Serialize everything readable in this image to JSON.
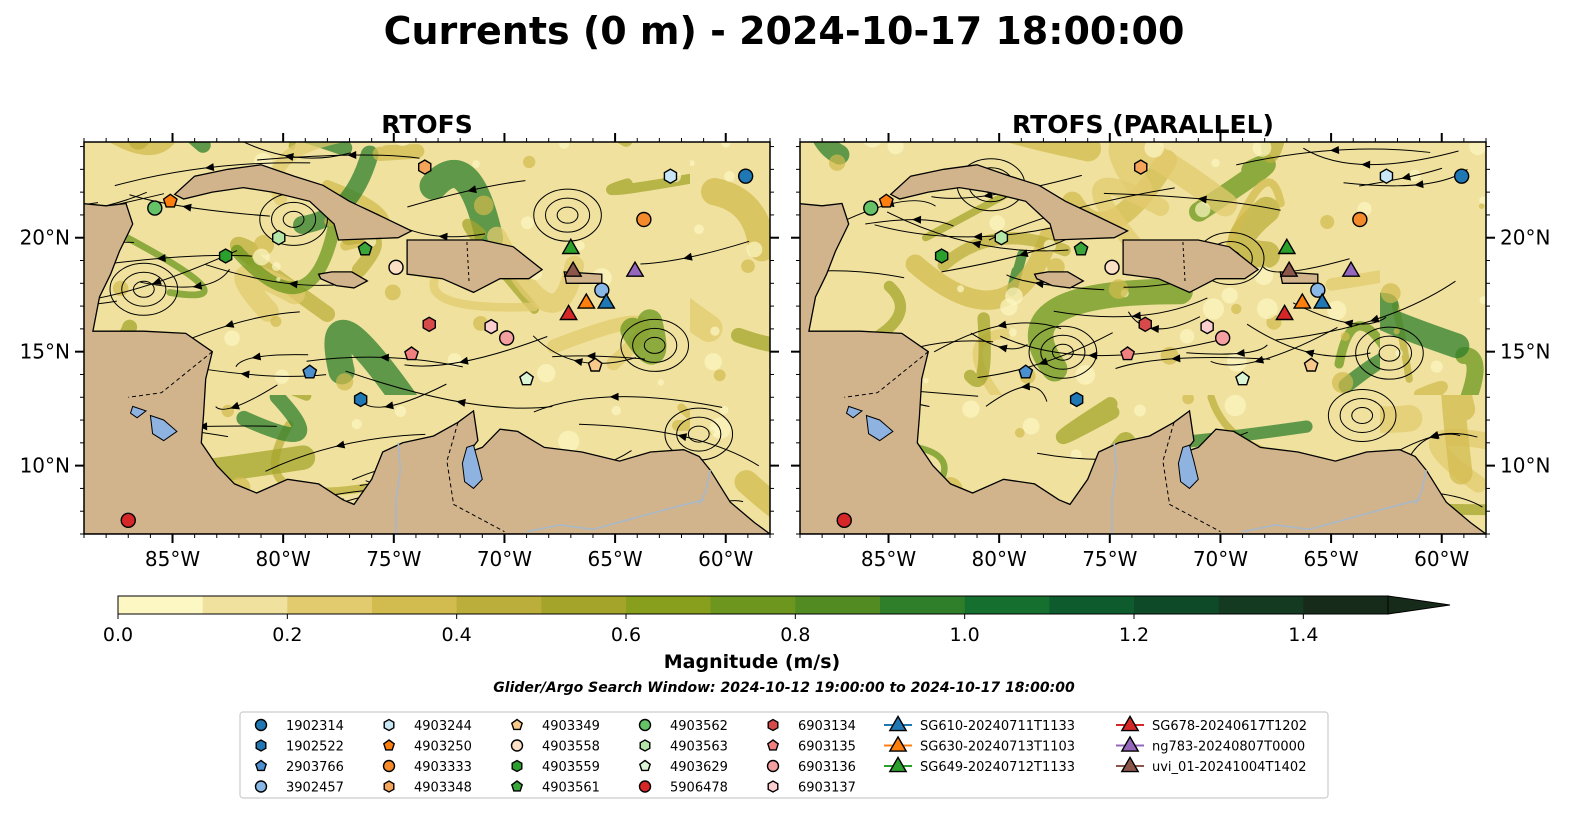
{
  "figure": {
    "title": "Currents (0 m) - 2024-10-17 18:00:00"
  },
  "panels": [
    {
      "id": "left",
      "title": "RTOFS",
      "y_labels_side": "left"
    },
    {
      "id": "right",
      "title": "RTOFS (PARALLEL)",
      "y_labels_side": "right"
    }
  ],
  "axes": {
    "lon_range": [
      -89,
      -58
    ],
    "lat_range": [
      7,
      24.2
    ],
    "x_ticks": [
      {
        "value": -85,
        "label": "85°W"
      },
      {
        "value": -80,
        "label": "80°W"
      },
      {
        "value": -75,
        "label": "75°W"
      },
      {
        "value": -70,
        "label": "70°W"
      },
      {
        "value": -65,
        "label": "65°W"
      },
      {
        "value": -60,
        "label": "60°W"
      }
    ],
    "y_ticks": [
      {
        "value": 10,
        "label": "10°N"
      },
      {
        "value": 15,
        "label": "15°N"
      },
      {
        "value": 20,
        "label": "20°N"
      }
    ]
  },
  "colorbar": {
    "label": "Magnitude (m/s)",
    "range": [
      0,
      1.5
    ],
    "extend": "max",
    "ticks": [
      {
        "value": 0.0,
        "label": "0.0"
      },
      {
        "value": 0.2,
        "label": "0.2"
      },
      {
        "value": 0.4,
        "label": "0.4"
      },
      {
        "value": 0.6,
        "label": "0.6"
      },
      {
        "value": 0.8,
        "label": "0.8"
      },
      {
        "value": 1.0,
        "label": "1.0"
      },
      {
        "value": 1.2,
        "label": "1.2"
      },
      {
        "value": 1.4,
        "label": "1.4"
      }
    ],
    "colors": [
      "#fdf7c3",
      "#f0e29e",
      "#e2cb6e",
      "#d2bb4f",
      "#bcae3a",
      "#a4a42a",
      "#879f1c",
      "#6c961d",
      "#518b22",
      "#2f7f2a",
      "#15702f",
      "#0e5c2d",
      "#0e4a28",
      "#153a22",
      "#172b1a"
    ]
  },
  "search_window": "Glider/Argo Search Window: 2024-10-12 19:00:00 to 2024-10-17 18:00:00",
  "colors": {
    "land": "#d2b48c",
    "lake": "#8fb3e0",
    "river": "#a8b8c8",
    "ocean_low": "#fdf7c3"
  },
  "platforms": [
    {
      "id": "1902314",
      "marker": "circle",
      "color": "#1f77b4",
      "lon": -59.1,
      "lat": 22.7,
      "lon2": -59.1,
      "lat2": 22.7
    },
    {
      "id": "1902522",
      "marker": "hexagon",
      "color": "#1f77b4",
      "lon": -76.5,
      "lat": 12.9,
      "lon2": -76.5,
      "lat2": 12.9
    },
    {
      "id": "2903766",
      "marker": "pentagon",
      "color": "#4a90d0",
      "lon": -78.8,
      "lat": 14.1,
      "lon2": -78.8,
      "lat2": 14.1
    },
    {
      "id": "3902457",
      "marker": "circle",
      "color": "#8ab8e6",
      "lon": -65.6,
      "lat": 17.7,
      "lon2": -65.6,
      "lat2": 17.7
    },
    {
      "id": "4903244",
      "marker": "hexagon",
      "color": "#c8e6f5",
      "lon": -62.5,
      "lat": 22.7,
      "lon2": -62.5,
      "lat2": 22.7
    },
    {
      "id": "4903250",
      "marker": "pentagon",
      "color": "#ff7f0e",
      "lon": -85.1,
      "lat": 21.6,
      "lon2": -85.1,
      "lat2": 21.6
    },
    {
      "id": "4903333",
      "marker": "circle",
      "color": "#f58a2a",
      "lon": -63.7,
      "lat": 20.8,
      "lon2": -63.7,
      "lat2": 20.8
    },
    {
      "id": "4903348",
      "marker": "hexagon",
      "color": "#f5a55a",
      "lon": -73.6,
      "lat": 23.1,
      "lon2": -73.6,
      "lat2": 23.1
    },
    {
      "id": "4903349",
      "marker": "pentagon",
      "color": "#f8c98a",
      "lon": -65.9,
      "lat": 14.4,
      "lon2": -65.9,
      "lat2": 14.4
    },
    {
      "id": "4903558",
      "marker": "circle",
      "color": "#fbe0c6",
      "lon": -74.9,
      "lat": 18.7,
      "lon2": -74.9,
      "lat2": 18.7
    },
    {
      "id": "4903559",
      "marker": "hexagon",
      "color": "#2ca02c",
      "lon": -82.6,
      "lat": 19.2,
      "lon2": -82.6,
      "lat2": 19.2
    },
    {
      "id": "4903561",
      "marker": "pentagon",
      "color": "#3aa63a",
      "lon": -76.3,
      "lat": 19.5,
      "lon2": -76.3,
      "lat2": 19.5
    },
    {
      "id": "4903562",
      "marker": "circle",
      "color": "#66c266",
      "lon": -85.8,
      "lat": 21.3,
      "lon2": -85.8,
      "lat2": 21.3
    },
    {
      "id": "4903563",
      "marker": "hexagon",
      "color": "#b4e6a8",
      "lon": -80.2,
      "lat": 20.0,
      "lon2": -79.9,
      "lat2": 20.0
    },
    {
      "id": "4903629",
      "marker": "pentagon",
      "color": "#dcf5d4",
      "lon": -69.0,
      "lat": 13.8,
      "lon2": -69.0,
      "lat2": 13.8
    },
    {
      "id": "5906478",
      "marker": "circle",
      "color": "#d62728",
      "lon": -87.0,
      "lat": 7.6,
      "lon2": -87.0,
      "lat2": 7.6
    },
    {
      "id": "6903134",
      "marker": "hexagon",
      "color": "#d84a4a",
      "lon": -73.4,
      "lat": 16.2,
      "lon2": -73.4,
      "lat2": 16.2
    },
    {
      "id": "6903135",
      "marker": "pentagon",
      "color": "#f08080",
      "lon": -74.2,
      "lat": 14.9,
      "lon2": -74.2,
      "lat2": 14.9
    },
    {
      "id": "6903136",
      "marker": "circle",
      "color": "#f5a0a0",
      "lon": -69.9,
      "lat": 15.6,
      "lon2": -69.9,
      "lat2": 15.6
    },
    {
      "id": "6903137",
      "marker": "hexagon",
      "color": "#fbcfcf",
      "lon": -70.6,
      "lat": 16.1,
      "lon2": -70.6,
      "lat2": 16.1
    },
    {
      "id": "SG610-20240711T1133",
      "marker": "triangle",
      "color": "#1f77b4",
      "lon": -65.4,
      "lat": 17.2,
      "lon2": -65.4,
      "lat2": 17.2
    },
    {
      "id": "SG630-20240713T1103",
      "marker": "triangle",
      "color": "#ff7f0e",
      "lon": -66.3,
      "lat": 17.2,
      "lon2": -66.3,
      "lat2": 17.2
    },
    {
      "id": "SG649-20240712T1133",
      "marker": "triangle",
      "color": "#2ca02c",
      "lon": -67.0,
      "lat": 19.6,
      "lon2": -67.0,
      "lat2": 19.6
    },
    {
      "id": "SG678-20240617T1202",
      "marker": "triangle",
      "color": "#d62728",
      "lon": -67.1,
      "lat": 16.7,
      "lon2": -67.1,
      "lat2": 16.7
    },
    {
      "id": "ng783-20240807T0000",
      "marker": "triangle",
      "color": "#9467bd",
      "lon": -64.1,
      "lat": 18.6,
      "lon2": -64.1,
      "lat2": 18.6
    },
    {
      "id": "uvi_01-20241004T1402",
      "marker": "triangle",
      "color": "#8c564b",
      "lon": -66.9,
      "lat": 18.6,
      "lon2": -66.9,
      "lat2": 18.6
    }
  ],
  "legend_columns": [
    [
      "1902314",
      "1902522",
      "2903766",
      "3902457"
    ],
    [
      "4903244",
      "4903250",
      "4903333",
      "4903348"
    ],
    [
      "4903349",
      "4903558",
      "4903559",
      "4903561"
    ],
    [
      "4903562",
      "4903563",
      "4903629",
      "5906478"
    ],
    [
      "6903134",
      "6903135",
      "6903136",
      "6903137"
    ],
    [
      "SG610-20240711T1133",
      "SG630-20240713T1103",
      "SG649-20240712T1133"
    ],
    [
      "SG678-20240617T1202",
      "ng783-20240807T0000",
      "uvi_01-20241004T1402"
    ]
  ]
}
